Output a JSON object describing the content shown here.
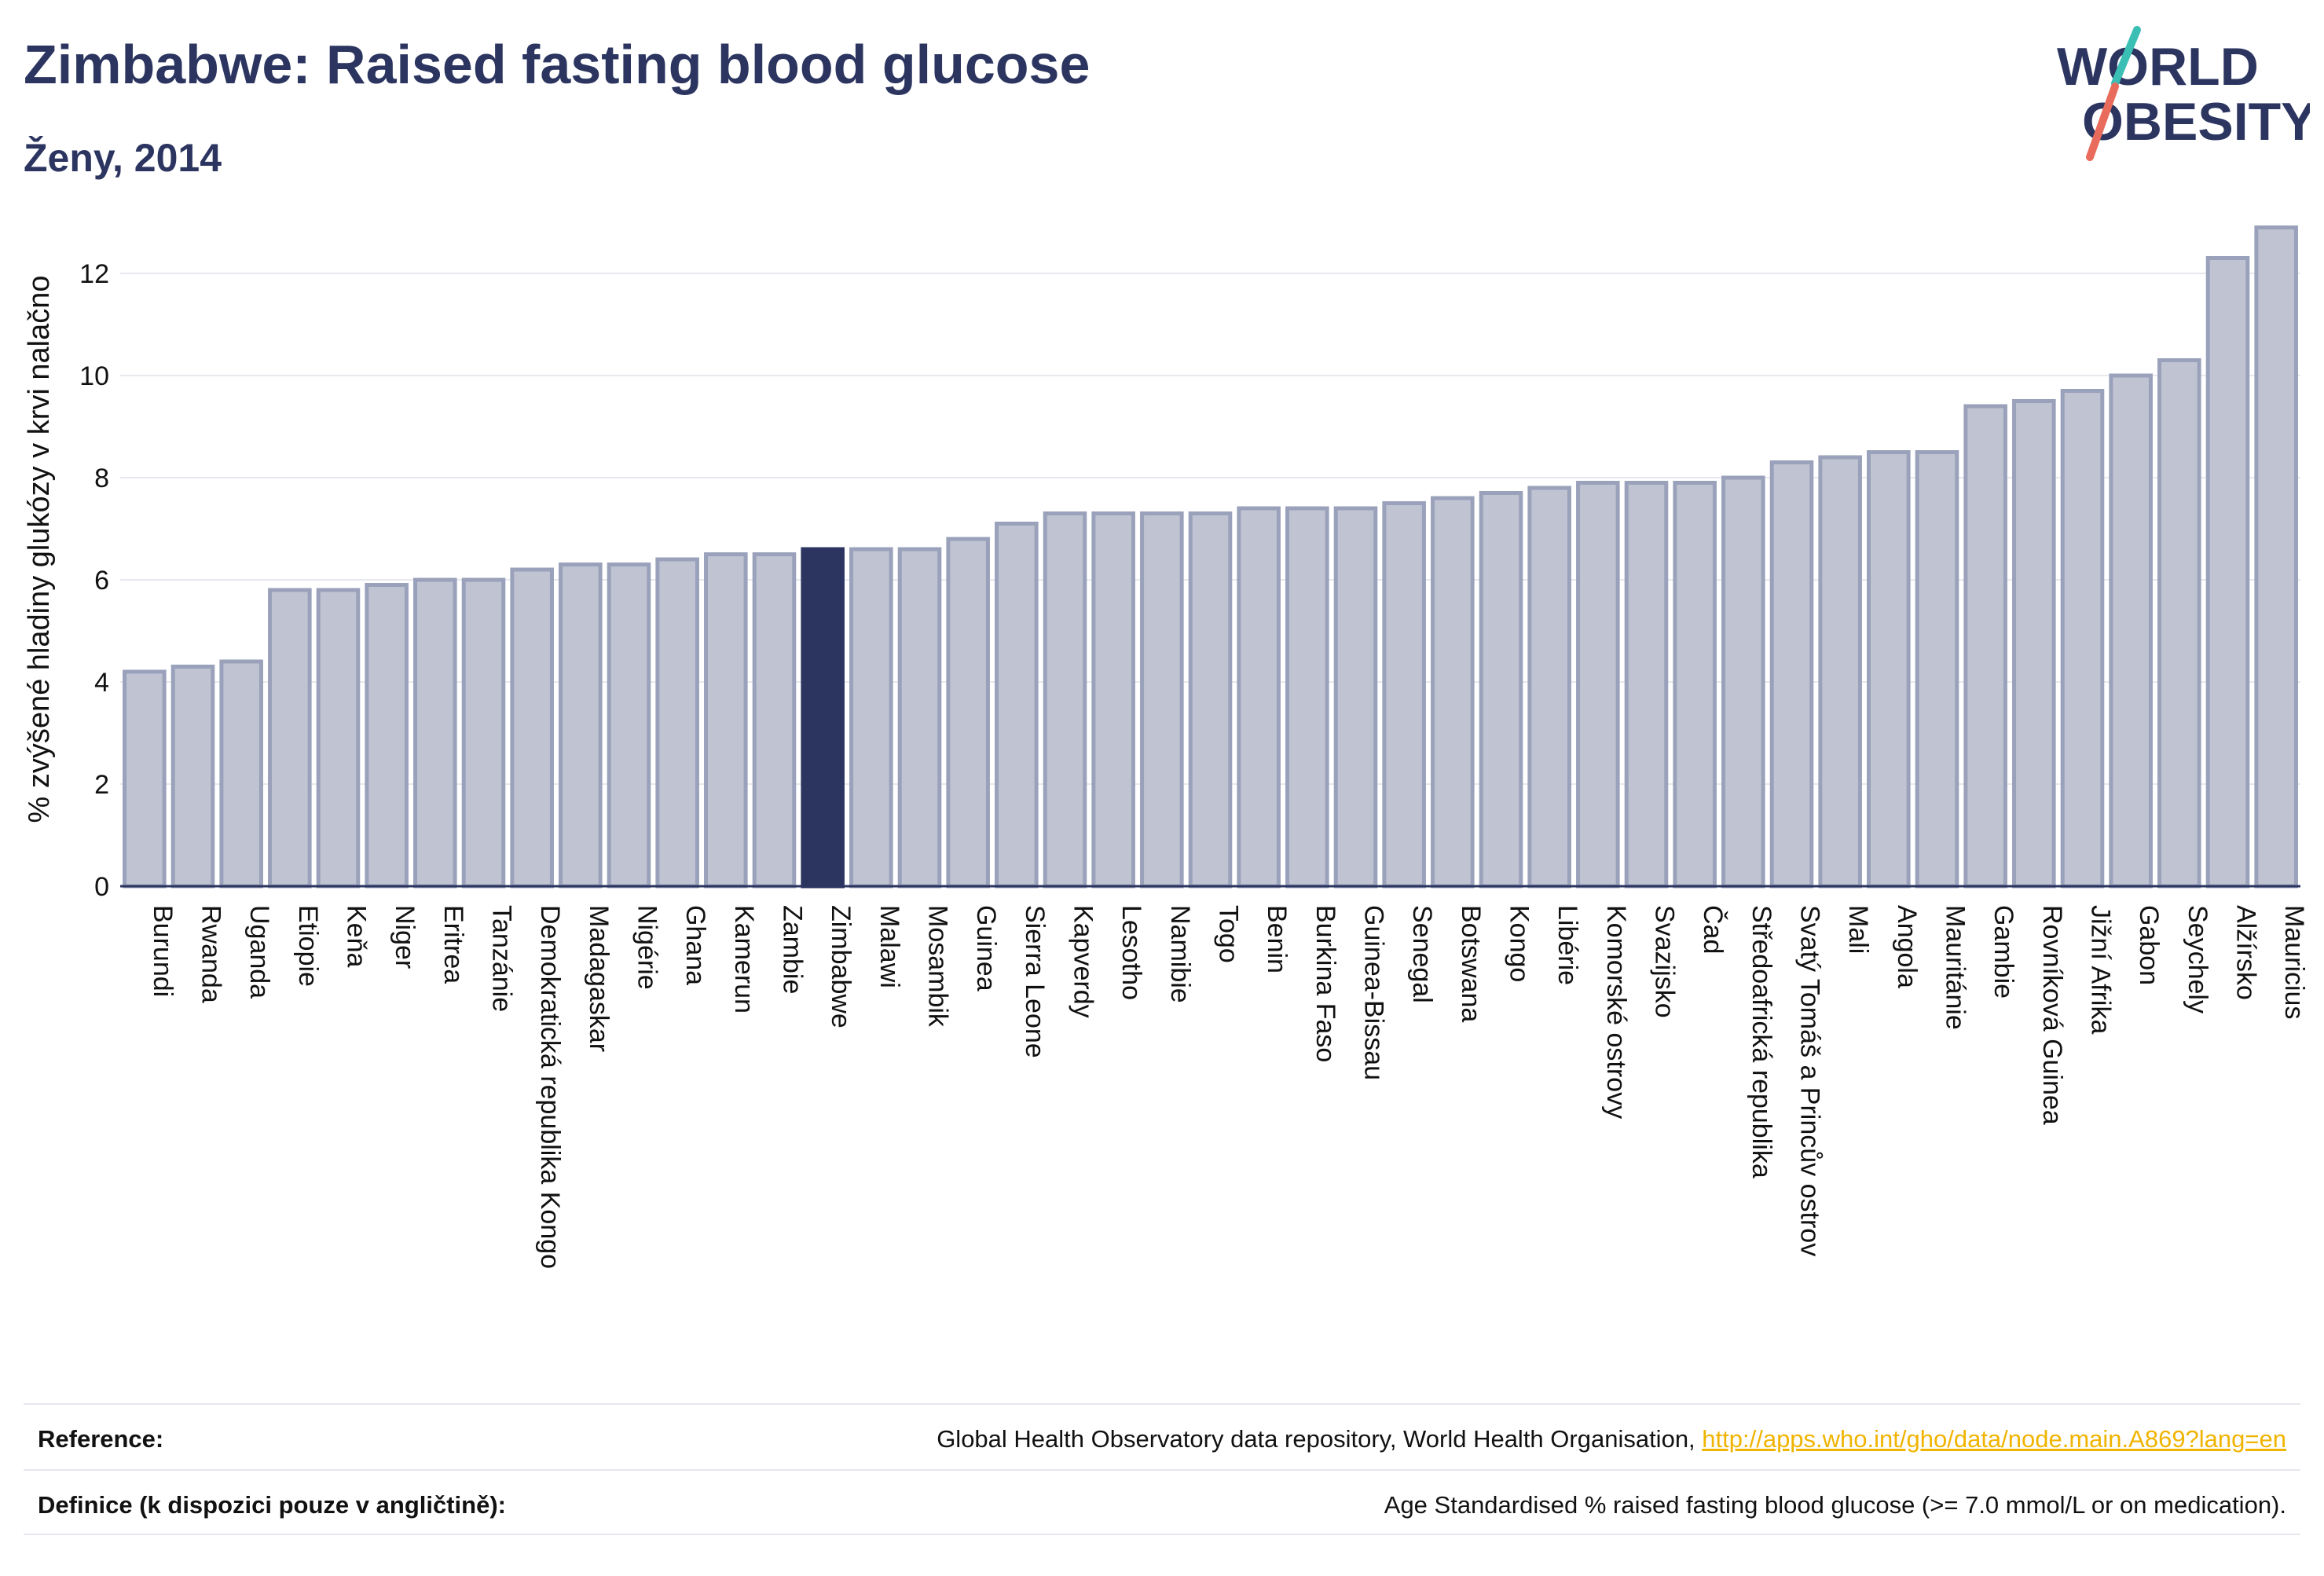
{
  "title": "Zimbabwe: Raised fasting blood glucose",
  "subtitle": "Ženy, 2014",
  "logo": {
    "line1": "WORLD",
    "line2": "OBESITY"
  },
  "colors": {
    "bar": "#c0c4d2",
    "bar_border": "#9aa1ba",
    "highlight": "#2b3560",
    "text": "#2b3560",
    "link": "#f0b400"
  },
  "chart_data": {
    "type": "bar",
    "ylabel": "% zvýšené hladiny glukózy v krvi nalačno",
    "ylim": [
      0,
      13.2
    ],
    "yticks": [
      0,
      2,
      4,
      6,
      8,
      10,
      12
    ],
    "grid": true,
    "highlight": "Zimbabwe",
    "categories": [
      "Burundi",
      "Rwanda",
      "Uganda",
      "Etiopie",
      "Keňa",
      "Niger",
      "Eritrea",
      "Tanzánie",
      "Demokratická republika Kongo",
      "Madagaskar",
      "Nigérie",
      "Ghana",
      "Kamerun",
      "Zambie",
      "Zimbabwe",
      "Malawi",
      "Mosambik",
      "Guinea",
      "Sierra Leone",
      "Kapverdy",
      "Lesotho",
      "Namibie",
      "Togo",
      "Benin",
      "Burkina Faso",
      "Guinea-Bissau",
      "Senegal",
      "Botswana",
      "Kongo",
      "Libérie",
      "Komorské ostrovy",
      "Svazijsko",
      "Čad",
      "Středoafrická republika",
      "Svatý Tomáš a Princův ostrov",
      "Mali",
      "Angola",
      "Mauritánie",
      "Gambie",
      "Rovníková Guinea",
      "Jižní Afrika",
      "Gabon",
      "Seychely",
      "Alžírsko",
      "Mauricius"
    ],
    "values": [
      4.2,
      4.3,
      4.4,
      5.8,
      5.8,
      5.9,
      6.0,
      6.0,
      6.2,
      6.3,
      6.3,
      6.4,
      6.5,
      6.5,
      6.6,
      6.6,
      6.6,
      6.8,
      7.1,
      7.3,
      7.3,
      7.3,
      7.3,
      7.4,
      7.4,
      7.4,
      7.5,
      7.6,
      7.7,
      7.8,
      7.9,
      7.9,
      7.9,
      8.0,
      8.3,
      8.4,
      8.5,
      8.5,
      9.4,
      9.5,
      9.7,
      10.0,
      10.3,
      12.3,
      12.9
    ]
  },
  "footer": {
    "reference_label": "Reference:",
    "reference_text": "Global Health Observatory data repository, World Health Organisation, ",
    "reference_link": "http://apps.who.int/gho/data/node.main.A869?lang=en",
    "definition_label": "Definice (k dispozici pouze v angličtině):",
    "definition_text": "Age Standardised % raised fasting blood glucose (>= 7.0 mmol/L or on medication)."
  }
}
